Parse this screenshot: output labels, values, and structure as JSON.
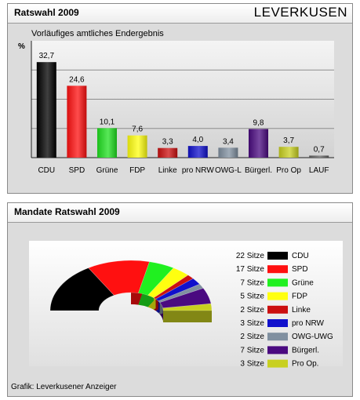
{
  "results_panel": {
    "title": "Ratswahl 2009",
    "city": "LEVERKUSEN",
    "subtitle": "Vorläufiges amtliches Endergebnis",
    "unit": "%"
  },
  "seats_panel": {
    "title": "Mandate Ratswahl 2009",
    "source": "Grafik: Leverkusener Anzeiger"
  },
  "chart_data": [
    {
      "type": "bar",
      "title": "Ratswahl 2009",
      "subtitle": "Vorläufiges amtliches Endergebnis",
      "ylabel": "%",
      "ylim": [
        0,
        40
      ],
      "grid": true,
      "categories": [
        "CDU",
        "SPD",
        "Grüne",
        "FDP",
        "Linke",
        "pro NRW",
        "OWG-L",
        "Bürgerl.",
        "Pro Op",
        "LAUF"
      ],
      "values": [
        32.7,
        24.6,
        10.1,
        7.6,
        3.3,
        4.0,
        3.4,
        9.8,
        3.7,
        0.7
      ],
      "value_labels": [
        "32,7",
        "24,6",
        "10,1",
        "7,6",
        "3,3",
        "4,0",
        "3,4",
        "9,8",
        "3,7",
        "0,7"
      ],
      "colors": [
        "#000000",
        "#ff1010",
        "#20e020",
        "#ffff10",
        "#cc1010",
        "#1010cc",
        "#8090a0",
        "#4a0a80",
        "#c8d020",
        "#606060"
      ]
    },
    {
      "type": "pie",
      "title": "Mandate Ratswahl 2009",
      "legend_position": "right",
      "labels": [
        "CDU",
        "SPD",
        "Grüne",
        "FDP",
        "Linke",
        "pro NRW",
        "OWG-UWG",
        "Bürgerl.",
        "Pro Op."
      ],
      "values": [
        22,
        17,
        7,
        5,
        2,
        3,
        2,
        7,
        3
      ],
      "value_labels": [
        "22 Sitze",
        "17 Sitze",
        "7 Sitze",
        "5 Sitze",
        "2 Sitze",
        "3 Sitze",
        "2 Sitze",
        "7 Sitze",
        "3 Sitze"
      ],
      "colors": [
        "#000000",
        "#ff1010",
        "#20f020",
        "#ffff10",
        "#cc1010",
        "#1010cc",
        "#8090a0",
        "#4a0a80",
        "#c8d020"
      ]
    }
  ]
}
